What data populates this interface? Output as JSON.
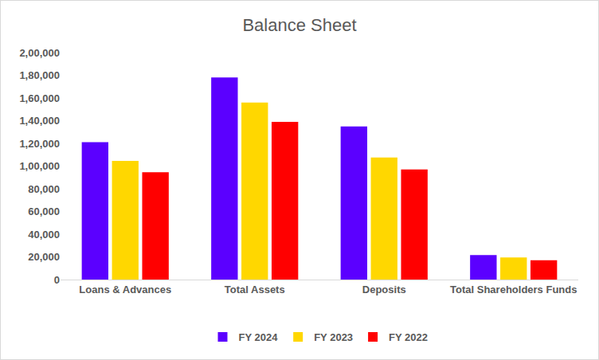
{
  "chart_data": {
    "type": "bar",
    "title": "Balance Sheet",
    "categories": [
      "Loans & Advances",
      "Total Assets",
      "Deposits",
      "Total Shareholders Funds"
    ],
    "series": [
      {
        "name": "FY 2024",
        "color": "#5b00ff",
        "values": [
          121000,
          178000,
          135000,
          21500
        ]
      },
      {
        "name": "FY 2023",
        "color": "#ffd700",
        "values": [
          104500,
          156000,
          107500,
          19500
        ]
      },
      {
        "name": "FY 2022",
        "color": "#ff0000",
        "values": [
          94500,
          139000,
          97000,
          17000
        ]
      }
    ],
    "ylim": [
      0,
      200000
    ],
    "yticks": [
      0,
      {
        "value": 20000,
        "label": "20,000"
      },
      {
        "value": 40000,
        "label": "40,000"
      },
      {
        "value": 60000,
        "label": "60,000"
      },
      {
        "value": 80000,
        "label": "80,000"
      },
      {
        "value": 100000,
        "label": "1,00,000"
      },
      {
        "value": 120000,
        "label": "1,20,000"
      },
      {
        "value": 140000,
        "label": "1,40,000"
      },
      {
        "value": 160000,
        "label": "1,60,000"
      },
      {
        "value": 180000,
        "label": "1,80,000"
      },
      {
        "value": 200000,
        "label": "2,00,000"
      }
    ],
    "grid": false,
    "legend": "bottom"
  }
}
